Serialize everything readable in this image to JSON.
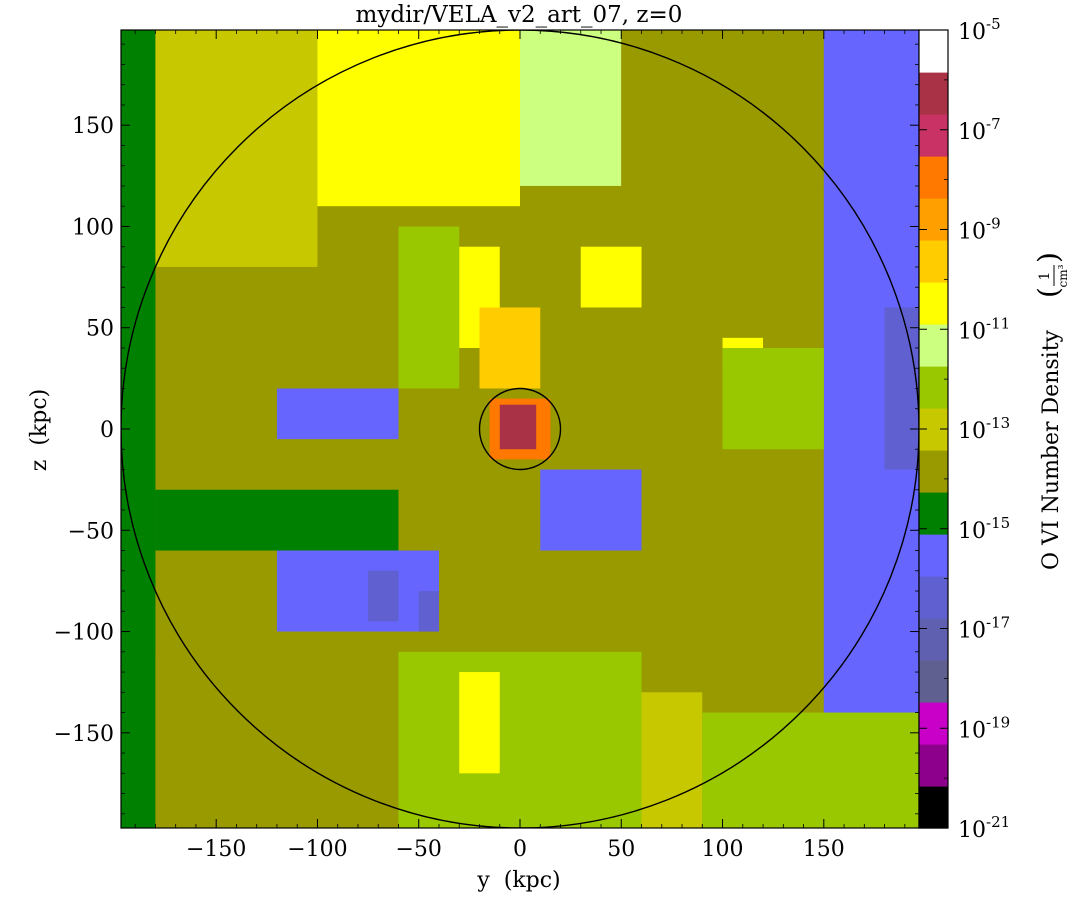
{
  "chart_data": {
    "type": "heatmap",
    "title": "mydir/VELA_v2_art_07, z=0",
    "xlabel": "y  (kpc)",
    "ylabel": "z  (kpc)",
    "xlim": [
      -197,
      197
    ],
    "ylim": [
      -197,
      197
    ],
    "x_ticks": [
      "−150",
      "−100",
      "−50",
      "0",
      "50",
      "100",
      "150"
    ],
    "x_tick_values": [
      -150,
      -100,
      -50,
      0,
      50,
      100,
      150
    ],
    "y_ticks": [
      "150",
      "100",
      "50",
      "0",
      "−50",
      "−100",
      "−150"
    ],
    "y_tick_values": [
      150,
      100,
      50,
      0,
      -50,
      -100,
      -150
    ],
    "colorbar": {
      "label": "O VI Number Density",
      "unit_numerator": "1",
      "unit_denominator": "cm³",
      "scale": "log",
      "range_exponent": [
        -21,
        -5
      ],
      "tick_exponents": [
        -5,
        -7,
        -9,
        -11,
        -13,
        -15,
        -17,
        -19,
        -21
      ],
      "tick_labels": [
        "10",
        "10",
        "10",
        "10",
        "10",
        "10",
        "10",
        "10",
        "10"
      ],
      "tick_superscripts": [
        "-5",
        "-7",
        "-9",
        "-11",
        "-13",
        "-15",
        "-17",
        "-19",
        "-21"
      ],
      "colors_low_to_high": [
        "#000000",
        "#8c008c",
        "#c800c8",
        "#606090",
        "#6060b0",
        "#6060d0",
        "#6666ff",
        "#008000",
        "#999900",
        "#c8c800",
        "#99c800",
        "#ccff80",
        "#ffff00",
        "#ffcc00",
        "#ffa000",
        "#ff7800",
        "#c83264",
        "#aa3246",
        "#ffffff"
      ]
    },
    "overlay_circles_kpc": [
      197,
      20
    ],
    "regions": [
      {
        "y": [
          -197,
          -180
        ],
        "z": [
          -197,
          197
        ],
        "level": -14.5
      },
      {
        "y": [
          -180,
          -100
        ],
        "z": [
          80,
          197
        ],
        "level": -12.6
      },
      {
        "y": [
          -100,
          0
        ],
        "z": [
          110,
          197
        ],
        "level": -10.6
      },
      {
        "y": [
          0,
          50
        ],
        "z": [
          120,
          197
        ],
        "level": -11.6
      },
      {
        "y": [
          50,
          150
        ],
        "z": [
          120,
          197
        ],
        "level": -13.6
      },
      {
        "y": [
          150,
          197
        ],
        "z": [
          -197,
          197
        ],
        "level": -15.4
      },
      {
        "y": [
          180,
          197
        ],
        "z": [
          -20,
          60
        ],
        "level": -16.6
      },
      {
        "y": [
          -180,
          -60
        ],
        "z": [
          -197,
          -110
        ],
        "level": -13.5
      },
      {
        "y": [
          -60,
          60
        ],
        "z": [
          -197,
          -110
        ],
        "level": -11.8
      },
      {
        "y": [
          -30,
          -10
        ],
        "z": [
          -170,
          -120
        ],
        "level": -10.6
      },
      {
        "y": [
          60,
          90
        ],
        "z": [
          -197,
          -130
        ],
        "level": -13.2
      },
      {
        "y": [
          90,
          197
        ],
        "z": [
          -197,
          -140
        ],
        "level": -12.5
      },
      {
        "y": [
          -180,
          -60
        ],
        "z": [
          -60,
          -30
        ],
        "level": -14.7
      },
      {
        "y": [
          -120,
          -40
        ],
        "z": [
          -100,
          -60
        ],
        "level": -15.3
      },
      {
        "y": [
          -75,
          -60
        ],
        "z": [
          -95,
          -70
        ],
        "level": -16.5
      },
      {
        "y": [
          -50,
          -40
        ],
        "z": [
          -100,
          -80
        ],
        "level": -16.5
      },
      {
        "y": [
          -120,
          -60
        ],
        "z": [
          -5,
          20
        ],
        "level": -15.4
      },
      {
        "y": [
          -60,
          -30
        ],
        "z": [
          20,
          100
        ],
        "level": -12.5
      },
      {
        "y": [
          -30,
          -10
        ],
        "z": [
          40,
          90
        ],
        "level": -10.5
      },
      {
        "y": [
          -20,
          10
        ],
        "z": [
          20,
          60
        ],
        "level": -9.5
      },
      {
        "y": [
          10,
          60
        ],
        "z": [
          -60,
          -20
        ],
        "level": -15.2
      },
      {
        "y": [
          30,
          60
        ],
        "z": [
          60,
          90
        ],
        "level": -10.7
      },
      {
        "y": [
          100,
          120
        ],
        "z": [
          30,
          45
        ],
        "level": -10.6
      },
      {
        "y": [
          100,
          150
        ],
        "z": [
          -10,
          40
        ],
        "level": -12.5
      },
      {
        "y": [
          -15,
          15
        ],
        "z": [
          -15,
          15
        ],
        "level": -8.2
      },
      {
        "y": [
          -10,
          8
        ],
        "z": [
          -10,
          12
        ],
        "level": -6.5
      }
    ]
  }
}
